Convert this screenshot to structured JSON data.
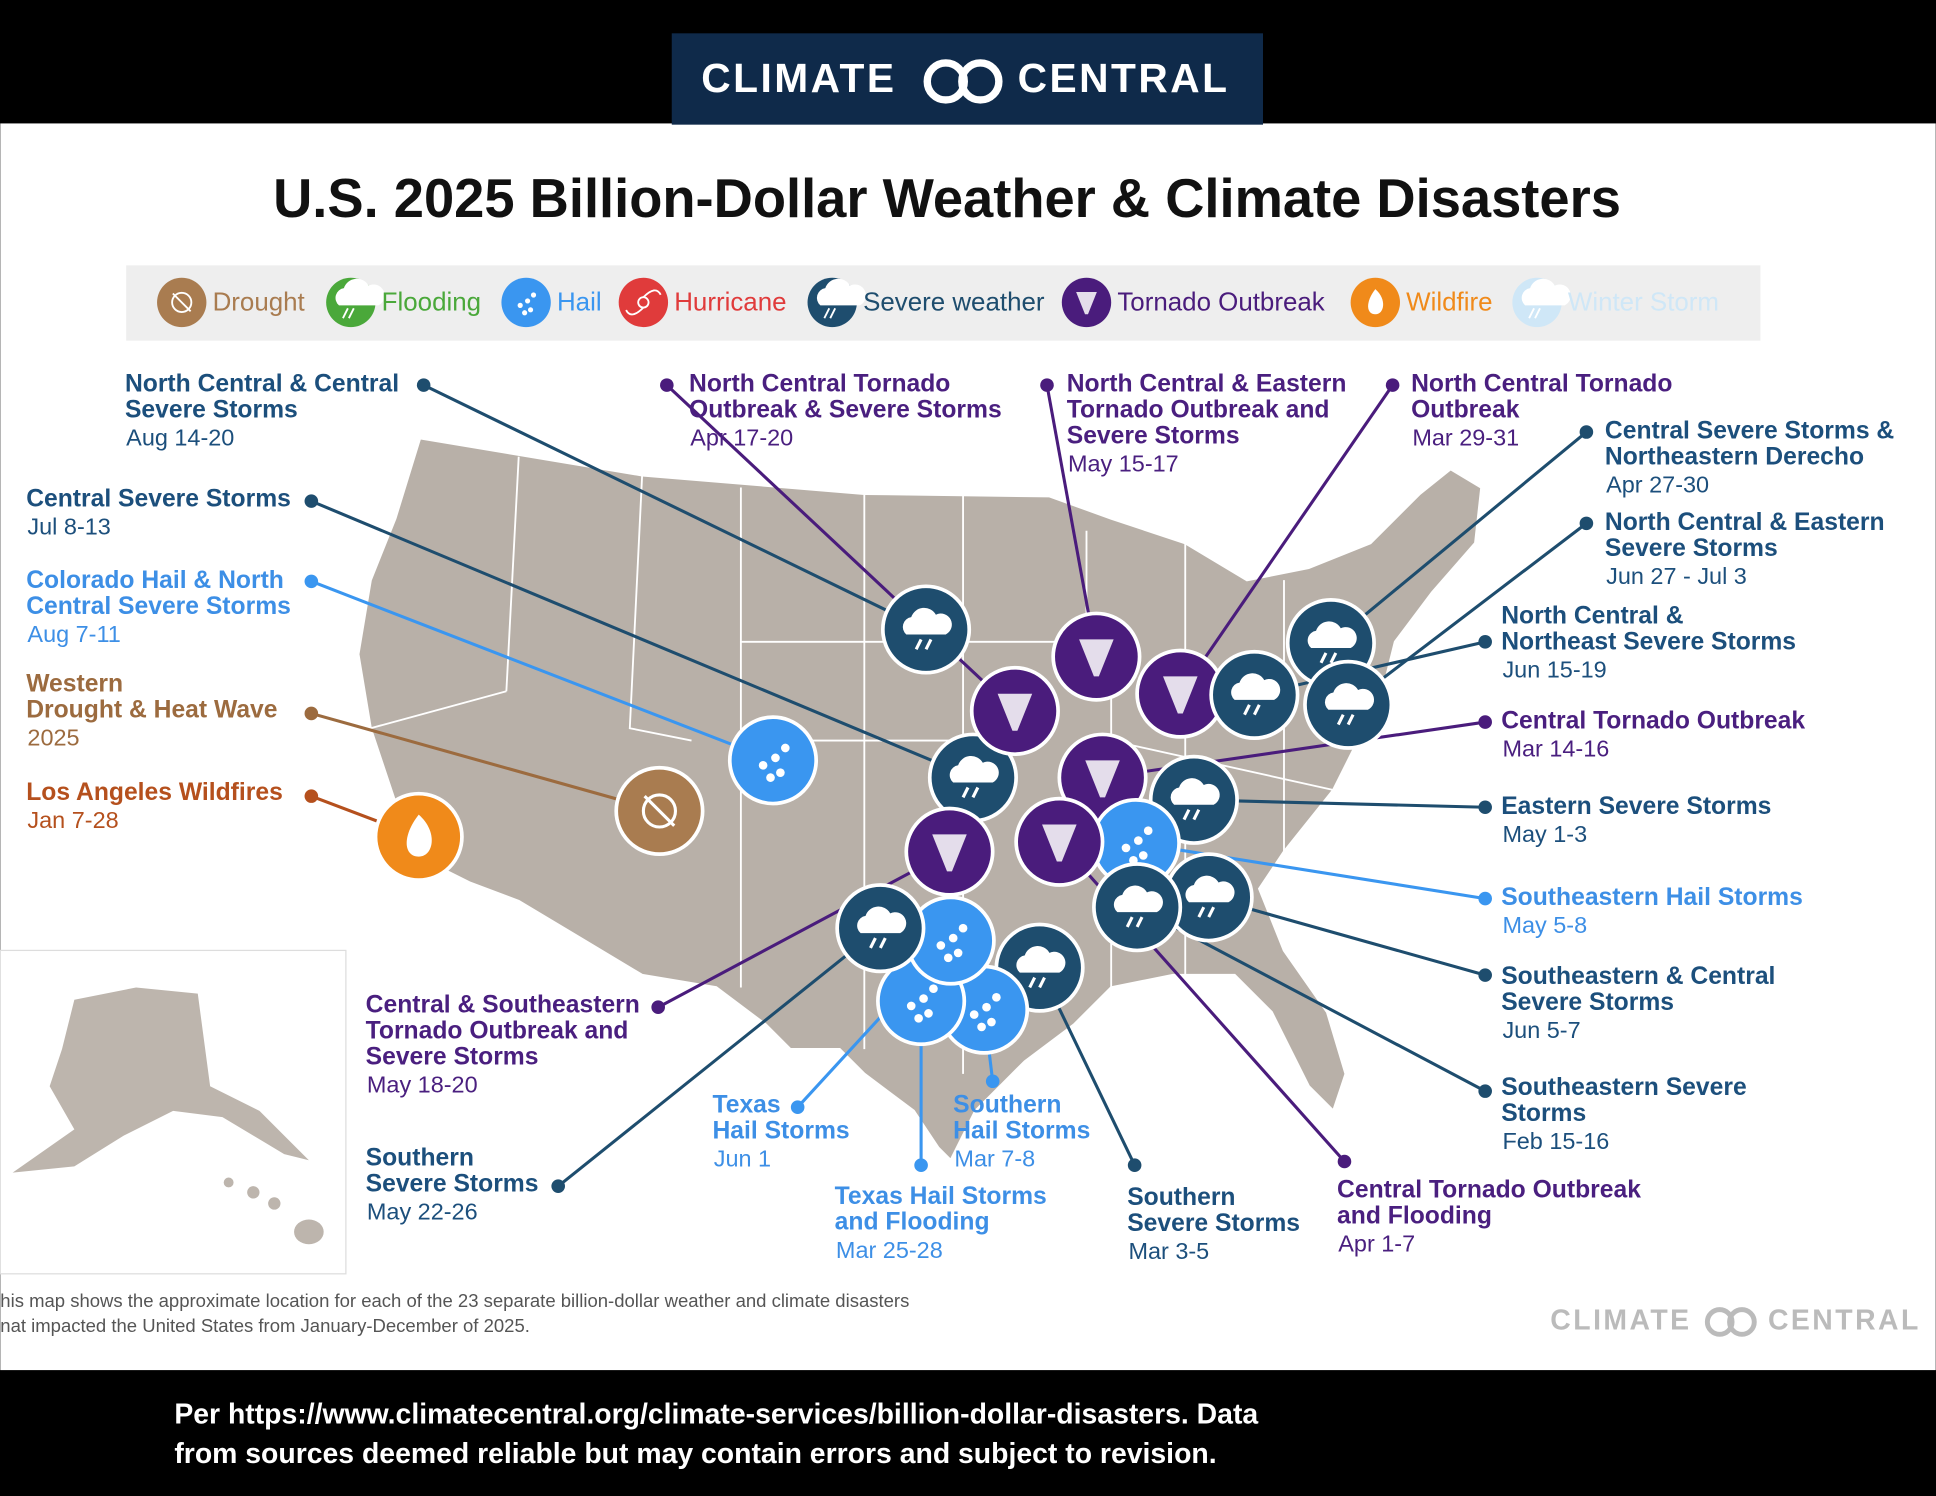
{
  "header": {
    "logo": [
      "CLIMATE",
      "CENTRAL"
    ]
  },
  "title": "U.S. 2025 Billion-Dollar Weather & Climate Disasters",
  "legend": [
    "Drought",
    "Flooding",
    "Hail",
    "Hurricane",
    "Severe weather",
    "Tornado Outbreak",
    "Wildfire",
    "Winter Storm"
  ],
  "events": [
    {
      "name": [
        "North Central & Central",
        "Severe Storms"
      ],
      "dates": "Aug 14-20"
    },
    {
      "name": [
        "Central Severe Storms"
      ],
      "dates": "Jul 8-13"
    },
    {
      "name": [
        "Colorado Hail & North",
        "Central Severe Storms"
      ],
      "dates": "Aug 7-11"
    },
    {
      "name": [
        "Western",
        "Drought & Heat Wave"
      ],
      "dates": "2025"
    },
    {
      "name": [
        "Los Angeles Wildfires"
      ],
      "dates": "Jan 7-28"
    },
    {
      "name": [
        "North Central Tornado",
        "Outbreak & Severe Storms"
      ],
      "dates": "Apr 17-20"
    },
    {
      "name": [
        "North Central & Eastern",
        "Tornado Outbreak and",
        "Severe Storms"
      ],
      "dates": "May 15-17"
    },
    {
      "name": [
        "North Central Tornado",
        "Outbreak"
      ],
      "dates": "Mar 29-31"
    },
    {
      "name": [
        "Central Severe Storms &",
        "Northeastern Derecho"
      ],
      "dates": "Apr 27-30"
    },
    {
      "name": [
        "North Central & Eastern",
        "Severe Storms"
      ],
      "dates": "Jun 27 - Jul 3"
    },
    {
      "name": [
        "North Central &",
        "Northeast Severe Storms"
      ],
      "dates": "Jun 15-19"
    },
    {
      "name": [
        "Central Tornado Outbreak"
      ],
      "dates": "Mar 14-16"
    },
    {
      "name": [
        "Eastern Severe Storms"
      ],
      "dates": "May 1-3"
    },
    {
      "name": [
        "Southeastern Hail Storms"
      ],
      "dates": "May 5-8"
    },
    {
      "name": [
        "Southeastern & Central",
        "Severe Storms"
      ],
      "dates": "Jun 5-7"
    },
    {
      "name": [
        "Southeastern Severe",
        "Storms"
      ],
      "dates": "Feb 15-16"
    },
    {
      "name": [
        "Central Tornado Outbreak",
        "and Flooding"
      ],
      "dates": "Apr 1-7"
    },
    {
      "name": [
        "Southern",
        "Severe Storms"
      ],
      "dates": "Mar 3-5"
    },
    {
      "name": [
        "Southern",
        "Hail Storms"
      ],
      "dates": "Mar 7-8"
    },
    {
      "name": [
        "Texas Hail Storms",
        "and Flooding"
      ],
      "dates": "Mar 25-28"
    },
    {
      "name": [
        "Texas",
        "Hail Storms"
      ],
      "dates": "Jun 1"
    },
    {
      "name": [
        "Southern",
        "Severe Storms"
      ],
      "dates": "May 22-26"
    },
    {
      "name": [
        "Central & Southeastern",
        "Tornado Outbreak and",
        "Severe Storms"
      ],
      "dates": "May 18-20"
    }
  ],
  "footnote": [
    "his map shows the approximate location for each of the 23 separate billion-dollar weather and climate disasters",
    "nat impacted the United States from January-December of 2025."
  ],
  "footer_logo": [
    "CLIMATE",
    "CENTRAL"
  ],
  "caption": [
    "Per https://www.climatecentral.org/climate-services/billion-dollar-disasters. Data",
    "from sources deemed reliable but may contain errors and subject to revision."
  ]
}
